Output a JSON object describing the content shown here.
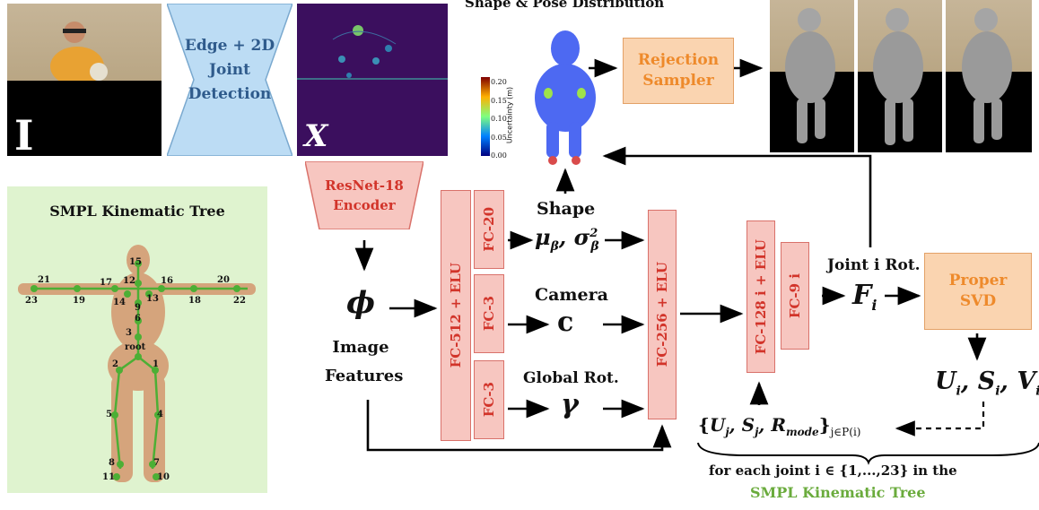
{
  "input_image": {
    "letter": "I"
  },
  "detector": {
    "line1": "Edge + 2D",
    "line2": "Joint",
    "line3": "Detection"
  },
  "proxy": {
    "letter": "X"
  },
  "distribution": {
    "title": "Shape & Pose Distribution",
    "colorbar_ticks": [
      "0.20",
      "0.15",
      "0.10",
      "0.05",
      "0.00"
    ],
    "colorbar_label": "Uncertainty (m)"
  },
  "rejection": {
    "line1": "Rejection",
    "line2": "Sampler"
  },
  "encoder": {
    "line1": "ResNet-18",
    "line2": "Encoder"
  },
  "features": {
    "symbol": "ϕ",
    "line1": "Image",
    "line2": "Features"
  },
  "fc": {
    "fc512": "FC-512 + ELU",
    "fc20": "FC-20",
    "fc3_cam": "FC-3",
    "fc3_rot": "FC-3",
    "fc256": "FC-256 + ELU",
    "fc128": "FC-128 i + ELU",
    "fc9": "FC-9 i"
  },
  "shape": {
    "label": "Shape",
    "mu": "μ",
    "mu_sub": "β",
    "sigma": "σ",
    "sigma_sub": "β",
    "sigma_sup": "2"
  },
  "camera": {
    "label": "Camera",
    "symbol": "c"
  },
  "global_rot": {
    "label": "Global Rot.",
    "symbol": "γ"
  },
  "joint_rot": {
    "label": "Joint i Rot.",
    "F": "F",
    "F_sub": "i"
  },
  "svd": {
    "line1": "Proper",
    "line2": "SVD"
  },
  "usv": {
    "U": "U",
    "S": "S",
    "V": "V",
    "sub": "i"
  },
  "parent": {
    "open": "{",
    "U": "U",
    "S": "S",
    "R": "R",
    "j": "j",
    "mode": "mode",
    "close": "}",
    "cond": "j∈P(i)"
  },
  "footnote": {
    "line1": "for each joint i ∈ {1,...,23} in the",
    "line2": "SMPL Kinematic Tree"
  },
  "tree": {
    "title": "SMPL Kinematic Tree",
    "joints": [
      "15",
      "12",
      "17",
      "16",
      "21",
      "20",
      "23",
      "19",
      "14",
      "13",
      "18",
      "22",
      "9",
      "6",
      "3",
      "root",
      "2",
      "1",
      "5",
      "4",
      "8",
      "7",
      "11",
      "10"
    ]
  },
  "colors": {
    "red_fill": "#f7c6c0",
    "red_text": "#d2342a",
    "orange_fill": "#fad4b0",
    "orange_text": "#ee8a2b",
    "blue_fill": "#bcdcf4",
    "green_text": "#6aab3c",
    "tree_bg": "#dff3cf"
  }
}
